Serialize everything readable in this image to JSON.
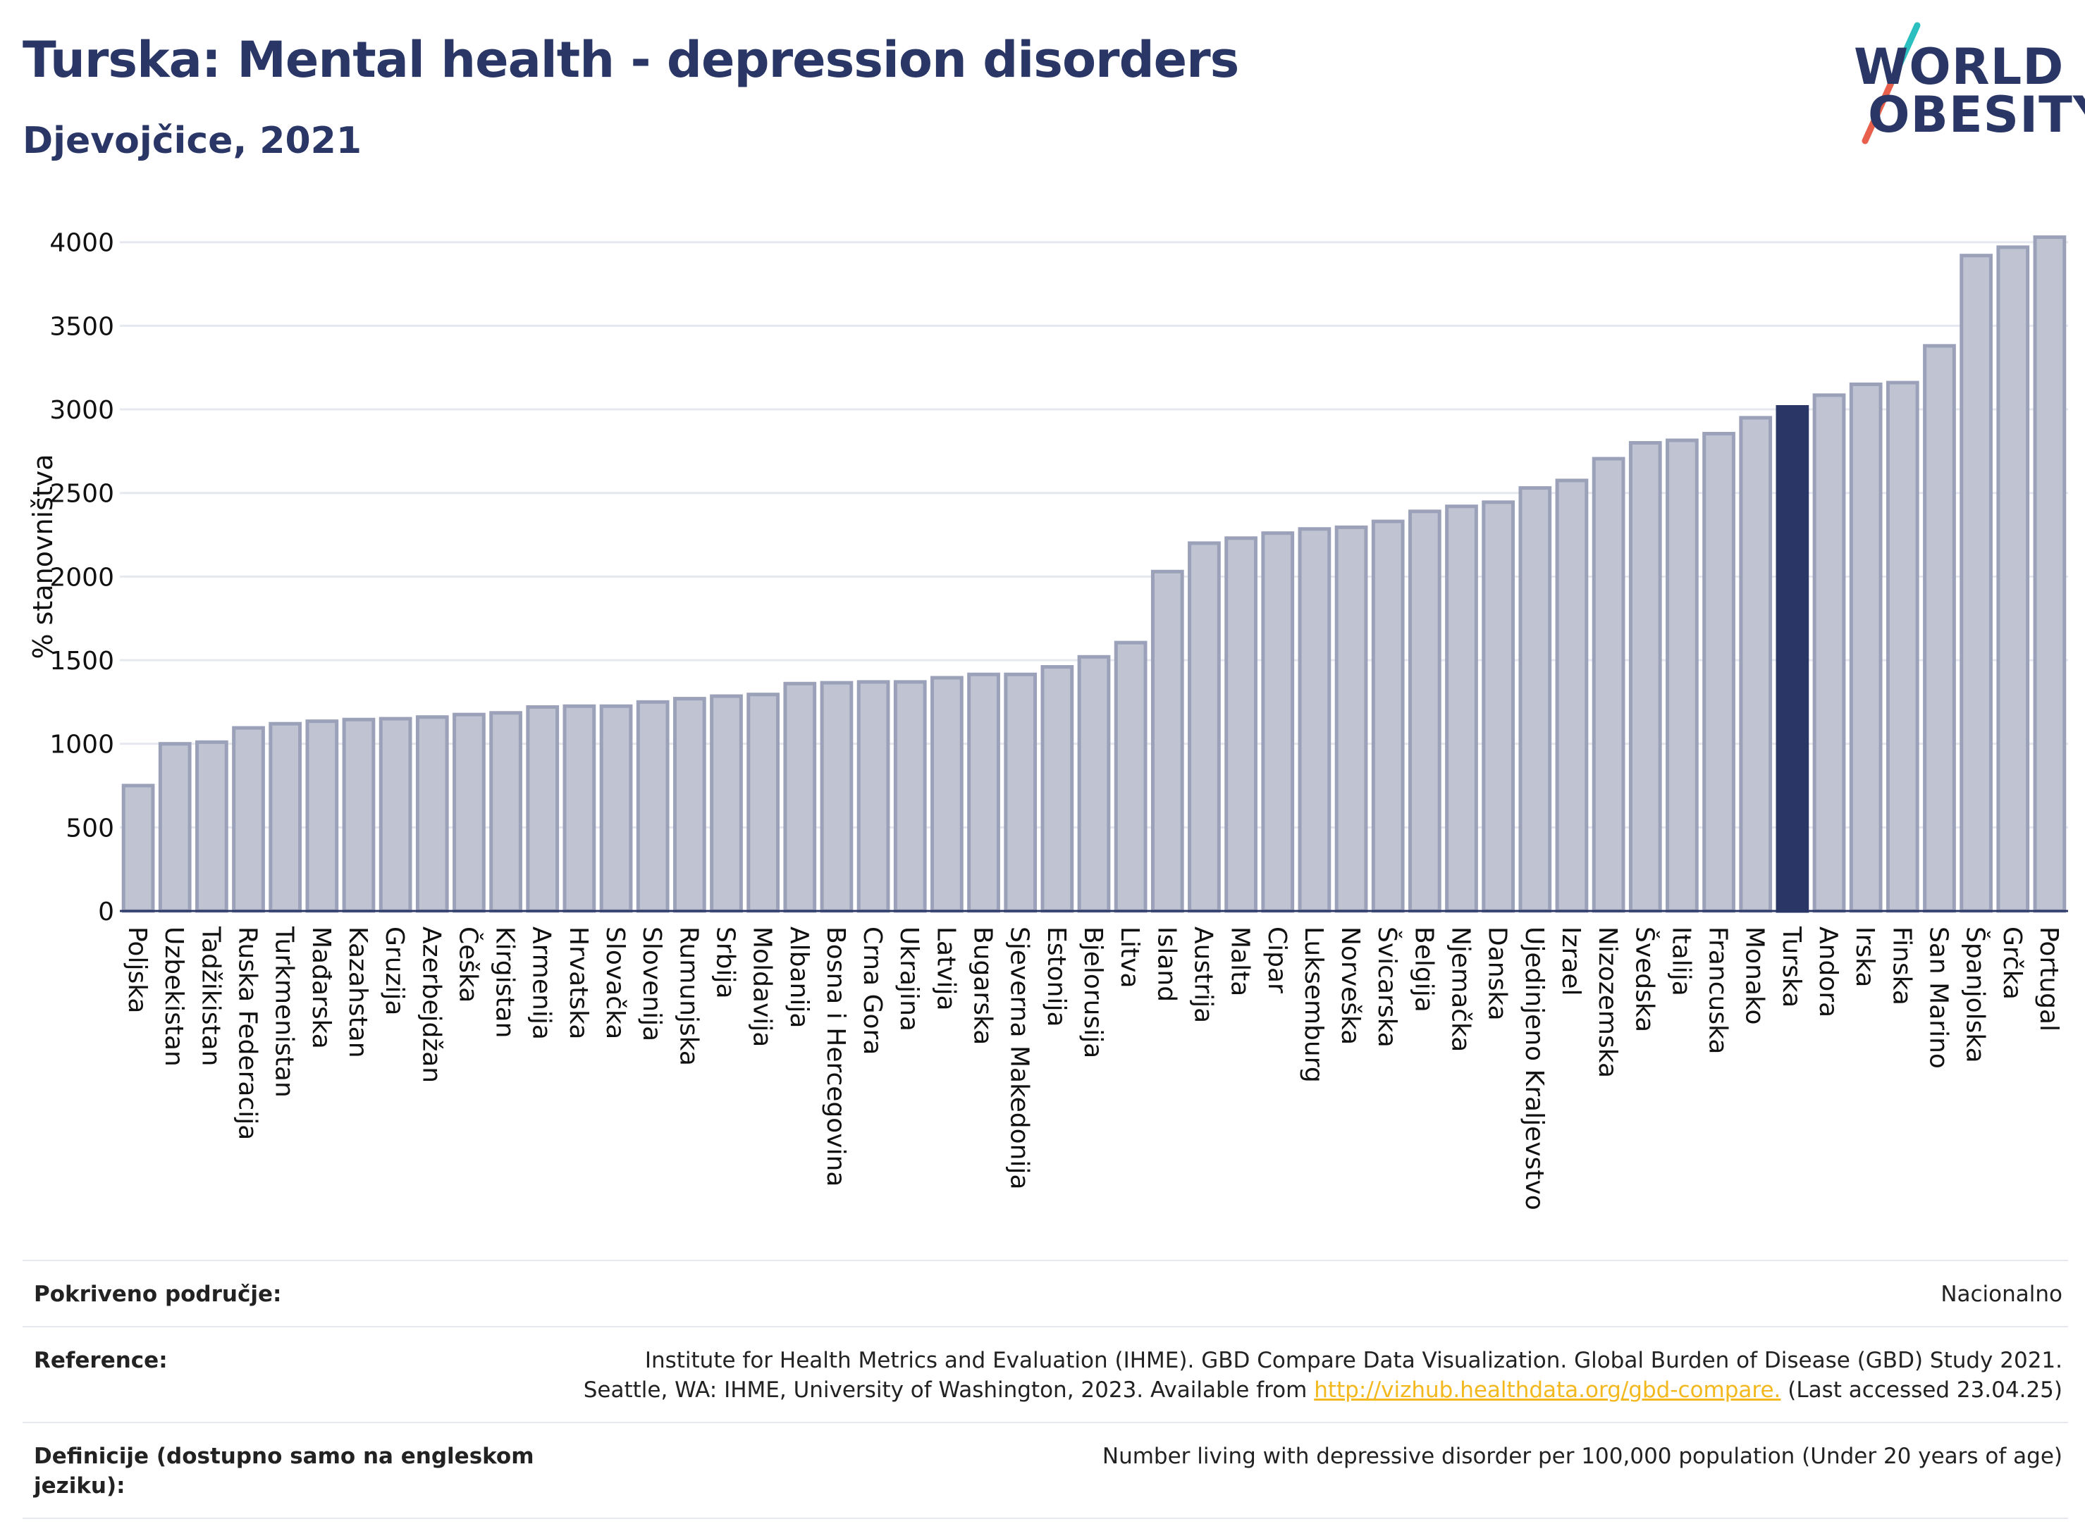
{
  "header": {
    "title": "Turska: Mental health - depression disorders",
    "subtitle": "Djevojčice, 2021"
  },
  "logo": {
    "line1": "WORLD",
    "line2": "OBESITY",
    "colors": {
      "text": "#2a3766",
      "slash_top": "#2bbfbf",
      "slash_bottom": "#e8604c"
    }
  },
  "chart_data": {
    "type": "bar",
    "ylabel": "% stanovništva",
    "ylim": [
      0,
      4100
    ],
    "yticks": [
      "0",
      "500",
      "1000",
      "1500",
      "2000",
      "2500",
      "3000",
      "3500",
      "4000"
    ],
    "grid": true,
    "highlight": "Turska",
    "colors": {
      "bar": "#bfc3d2",
      "bar_edge": "#9ba1b8",
      "highlight": "#2a3766",
      "grid": "#e6e8ef"
    },
    "categories": [
      "Poljska",
      "Uzbekistan",
      "Tadžikistan",
      "Ruska Federacija",
      "Turkmenistan",
      "Mađarska",
      "Kazahstan",
      "Gruzija",
      "Azerbejdžan",
      "Češka",
      "Kirgistan",
      "Armenija",
      "Hrvatska",
      "Slovačka",
      "Slovenija",
      "Rumunjska",
      "Srbija",
      "Moldavija",
      "Albanija",
      "Bosna i Hercegovina",
      "Crna Gora",
      "Ukrajina",
      "Latvija",
      "Bugarska",
      "Sjeverna Makedonija",
      "Estonija",
      "Bjelorusija",
      "Litva",
      "Island",
      "Austrija",
      "Malta",
      "Cipar",
      "Luksemburg",
      "Norveška",
      "Švicarska",
      "Belgija",
      "Njemačka",
      "Danska",
      "Ujedinjeno Kraljevstvo",
      "Izrael",
      "Nizozemska",
      "Švedska",
      "Italija",
      "Francuska",
      "Monako",
      "Turska",
      "Andora",
      "Irska",
      "Finska",
      "San Marino",
      "Španjolska",
      "Grčka",
      "Portugal"
    ],
    "values": [
      750,
      1000,
      1010,
      1095,
      1120,
      1135,
      1145,
      1150,
      1160,
      1175,
      1185,
      1220,
      1225,
      1225,
      1250,
      1270,
      1285,
      1295,
      1360,
      1365,
      1370,
      1370,
      1395,
      1415,
      1415,
      1460,
      1520,
      1605,
      2030,
      2200,
      2230,
      2260,
      2285,
      2295,
      2330,
      2390,
      2420,
      2445,
      2530,
      2575,
      2705,
      2800,
      2815,
      2855,
      2950,
      3015,
      3085,
      3150,
      3160,
      3380,
      3920,
      3970,
      4030
    ]
  },
  "meta": {
    "coverage_label": "Pokriveno područje:",
    "coverage_value": "Nacionalno",
    "reference_label": "Reference:",
    "reference_line1": "Institute for Health Metrics and Evaluation (IHME). GBD Compare Data Visualization. Global Burden of Disease (GBD) Study 2021.",
    "reference_line2_pre": "Seattle, WA: IHME, University of Washington, 2023. Available from ",
    "reference_link": "http://vizhub.healthdata.org/gbd-compare.",
    "reference_line2_post": " (Last accessed 23.04.25)",
    "definition_label": "Definicije (dostupno samo na engleskom jeziku):",
    "definition_value": "Number living with depressive disorder per 100,000 population (Under 20 years of age)"
  }
}
